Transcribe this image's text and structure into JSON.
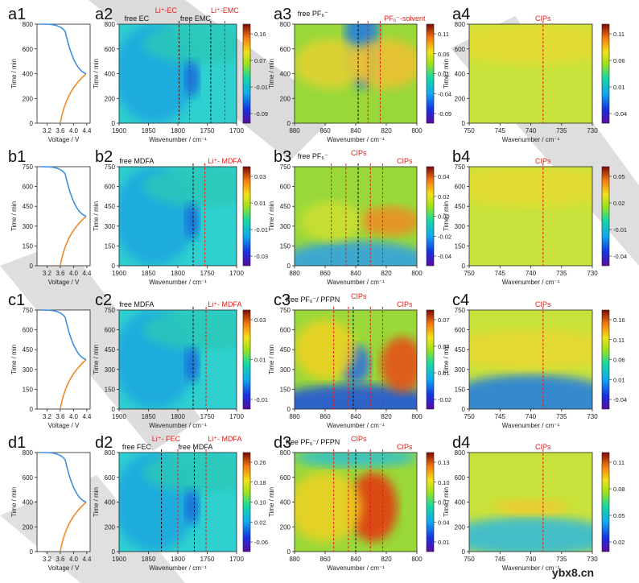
{
  "figure": {
    "watermark": "ybx8.cn",
    "rows": [
      {
        "labels": [
          "a1",
          "a2",
          "a3",
          "a4"
        ],
        "voltage": {
          "time_max": 800,
          "time_ticks": [
            0,
            200,
            400,
            600,
            800
          ],
          "voltage_ticks": [
            "3.2",
            "3.6",
            "4.0",
            "4.4"
          ],
          "xlabel": "Voltage / V",
          "ylabel": "Time / min"
        },
        "p2": {
          "x_ticks": [
            "1900",
            "1850",
            "1800",
            "1750",
            "1700"
          ],
          "y_ticks": [
            "0",
            "200",
            "400",
            "600",
            "800"
          ],
          "cb_ticks": [
            "0.16",
            "0.07",
            "-0.01",
            "-0.09"
          ],
          "top_labels": [
            {
              "text": "free EC",
              "color": "#111111"
            },
            {
              "text": "Li⁺-EC",
              "color": "#e0201a"
            },
            {
              "text": "free EMC",
              "color": "#111111"
            },
            {
              "text": "Li⁺-EMC",
              "color": "#e0201a"
            }
          ],
          "xlabel": "Wavenumber / cm⁻¹",
          "ylabel": "Time / min"
        },
        "p3": {
          "x_ticks": [
            "880",
            "860",
            "840",
            "820",
            "800"
          ],
          "y_ticks": [
            "0",
            "200",
            "400",
            "600",
            "800"
          ],
          "cb_ticks": [
            "0.11",
            "0.06",
            "0.01",
            "-0.04",
            "-0.09"
          ],
          "top_labels": [
            {
              "text": "free PF₆⁻",
              "color": "#111111"
            },
            {
              "text": "PF₆⁻-solvent",
              "color": "#e0201a"
            }
          ],
          "xlabel": "Wavenumber / cm⁻¹",
          "ylabel": "Time / min"
        },
        "p4": {
          "x_ticks": [
            "750",
            "745",
            "740",
            "735",
            "730"
          ],
          "y_ticks": [
            "0",
            "200",
            "400",
            "600",
            "800"
          ],
          "cb_ticks": [
            "0.11",
            "0.06",
            "0.01",
            "-0.04"
          ],
          "top_labels": [
            {
              "text": "CIPs",
              "color": "#e0201a"
            }
          ],
          "xlabel": "Wavenumber / cm⁻¹",
          "ylabel": "Time / min"
        }
      },
      {
        "labels": [
          "b1",
          "b2",
          "b3",
          "b4"
        ],
        "voltage": {
          "time_max": 750,
          "time_ticks": [
            0,
            150,
            300,
            450,
            600,
            750
          ],
          "voltage_ticks": [
            "3.2",
            "3.6",
            "4.0",
            "4.4"
          ],
          "xlabel": "Voltage / V",
          "ylabel": "Time / min"
        },
        "p2": {
          "x_ticks": [
            "1900",
            "1850",
            "1800",
            "1750",
            "1700"
          ],
          "y_ticks": [
            "0",
            "150",
            "300",
            "450",
            "600",
            "750"
          ],
          "cb_ticks": [
            "0.03",
            "0.01",
            "-0.01",
            "-0.03"
          ],
          "top_labels": [
            {
              "text": "free MDFA",
              "color": "#111111"
            },
            {
              "text": "Li⁺- MDFA",
              "color": "#e0201a"
            }
          ],
          "xlabel": "Wavenumber / cm⁻¹",
          "ylabel": "Time / min"
        },
        "p3": {
          "x_ticks": [
            "880",
            "860",
            "840",
            "820",
            "800"
          ],
          "y_ticks": [
            "0",
            "150",
            "300",
            "450",
            "600",
            "750"
          ],
          "cb_ticks": [
            "0.04",
            "0.02",
            "0.00",
            "-0.02",
            "-0.04"
          ],
          "top_labels": [
            {
              "text": "free PF₆⁻",
              "color": "#111111"
            },
            {
              "text": "CIPs",
              "color": "#e0201a"
            },
            {
              "text": "CIPs",
              "color": "#e0201a"
            }
          ],
          "xlabel": "Wavenumber / cm⁻¹",
          "ylabel": "Time / min"
        },
        "p4": {
          "x_ticks": [
            "750",
            "745",
            "740",
            "735",
            "730"
          ],
          "y_ticks": [
            "0",
            "150",
            "300",
            "450",
            "600",
            "750"
          ],
          "cb_ticks": [
            "0.05",
            "0.02",
            "-0.01",
            "-0.04"
          ],
          "top_labels": [
            {
              "text": "CIPs",
              "color": "#e0201a"
            }
          ],
          "xlabel": "Wavenumber / cm⁻¹",
          "ylabel": "Time / min"
        }
      },
      {
        "labels": [
          "c1",
          "c2",
          "c3",
          "c4"
        ],
        "voltage": {
          "time_max": 750,
          "time_ticks": [
            0,
            150,
            300,
            450,
            600,
            750
          ],
          "voltage_ticks": [
            "3.2",
            "3.6",
            "4.0",
            "4.4"
          ],
          "xlabel": "Voltage / V",
          "ylabel": "Time / min"
        },
        "p2": {
          "x_ticks": [
            "1900",
            "1850",
            "1800",
            "1750",
            "1700"
          ],
          "y_ticks": [
            "0",
            "150",
            "300",
            "450",
            "600",
            "750"
          ],
          "cb_ticks": [
            "0.03",
            "0.01",
            "-0.01"
          ],
          "top_labels": [
            {
              "text": "free MDFA",
              "color": "#111111"
            },
            {
              "text": "Li⁺- MDFA",
              "color": "#e0201a"
            }
          ],
          "xlabel": "Wavenumber / cm⁻¹",
          "ylabel": "Time / min"
        },
        "p3": {
          "x_ticks": [
            "880",
            "860",
            "840",
            "820",
            "800"
          ],
          "y_ticks": [
            "0",
            "150",
            "300",
            "450",
            "600",
            "750"
          ],
          "cb_ticks": [
            "0.07",
            "0.04",
            "0.01",
            "-0.02"
          ],
          "top_labels": [
            {
              "text": "free PF₆⁻/ PFPN",
              "color": "#111111"
            },
            {
              "text": "CIPs",
              "color": "#e0201a"
            },
            {
              "text": "CIPs",
              "color": "#e0201a"
            }
          ],
          "xlabel": "Wavenumber / cm⁻¹",
          "ylabel": "Time / min"
        },
        "p4": {
          "x_ticks": [
            "750",
            "745",
            "740",
            "735",
            "730"
          ],
          "y_ticks": [
            "0",
            "150",
            "300",
            "450",
            "600",
            "750"
          ],
          "cb_ticks": [
            "0.16",
            "0.11",
            "0.06",
            "0.01",
            "-0.04"
          ],
          "top_labels": [
            {
              "text": "CIPs",
              "color": "#e0201a"
            }
          ],
          "xlabel": "Wavenumber / cm⁻¹",
          "ylabel": "Time / min"
        }
      },
      {
        "labels": [
          "d1",
          "d2",
          "d3",
          "d4"
        ],
        "voltage": {
          "time_max": 800,
          "time_ticks": [
            0,
            200,
            400,
            600,
            800
          ],
          "voltage_ticks": [
            "3.2",
            "3.6",
            "4.0",
            "4.4"
          ],
          "xlabel": "Voltage / V",
          "ylabel": "Time / min"
        },
        "p2": {
          "x_ticks": [
            "1900",
            "1850",
            "1800",
            "1750",
            "1700"
          ],
          "y_ticks": [
            "0",
            "200",
            "400",
            "600",
            "800"
          ],
          "cb_ticks": [
            "0.26",
            "0.18",
            "0.10",
            "0.02",
            "-0.06"
          ],
          "top_labels": [
            {
              "text": "free FEC",
              "color": "#111111"
            },
            {
              "text": "Li⁺- FEC",
              "color": "#e0201a"
            },
            {
              "text": "free MDFA",
              "color": "#111111"
            },
            {
              "text": "Li⁺- MDFA",
              "color": "#e0201a"
            }
          ],
          "xlabel": "Wavenumber / cm⁻¹",
          "ylabel": "Time / min"
        },
        "p3": {
          "x_ticks": [
            "880",
            "860",
            "840",
            "820",
            "800"
          ],
          "y_ticks": [
            "0",
            "200",
            "400",
            "600",
            "800"
          ],
          "cb_ticks": [
            "0.13",
            "0.10",
            "0.07",
            "0.04",
            "0.01"
          ],
          "top_labels": [
            {
              "text": "free PF₆⁻/ PFPN",
              "color": "#111111"
            },
            {
              "text": "CIPs",
              "color": "#e0201a"
            },
            {
              "text": "CIPs",
              "color": "#e0201a"
            }
          ],
          "xlabel": "Wavenumber / cm⁻¹",
          "ylabel": "Time / min"
        },
        "p4": {
          "x_ticks": [
            "750",
            "745",
            "740",
            "735",
            "730"
          ],
          "y_ticks": [
            "0",
            "200",
            "400",
            "600",
            "800"
          ],
          "cb_ticks": [
            "0.11",
            "0.08",
            "0.05",
            "0.02"
          ],
          "top_labels": [
            {
              "text": "CIPs",
              "color": "#e0201a"
            }
          ],
          "xlabel": "Wavenumber / cm⁻¹",
          "ylabel": "Time / min"
        }
      }
    ]
  }
}
